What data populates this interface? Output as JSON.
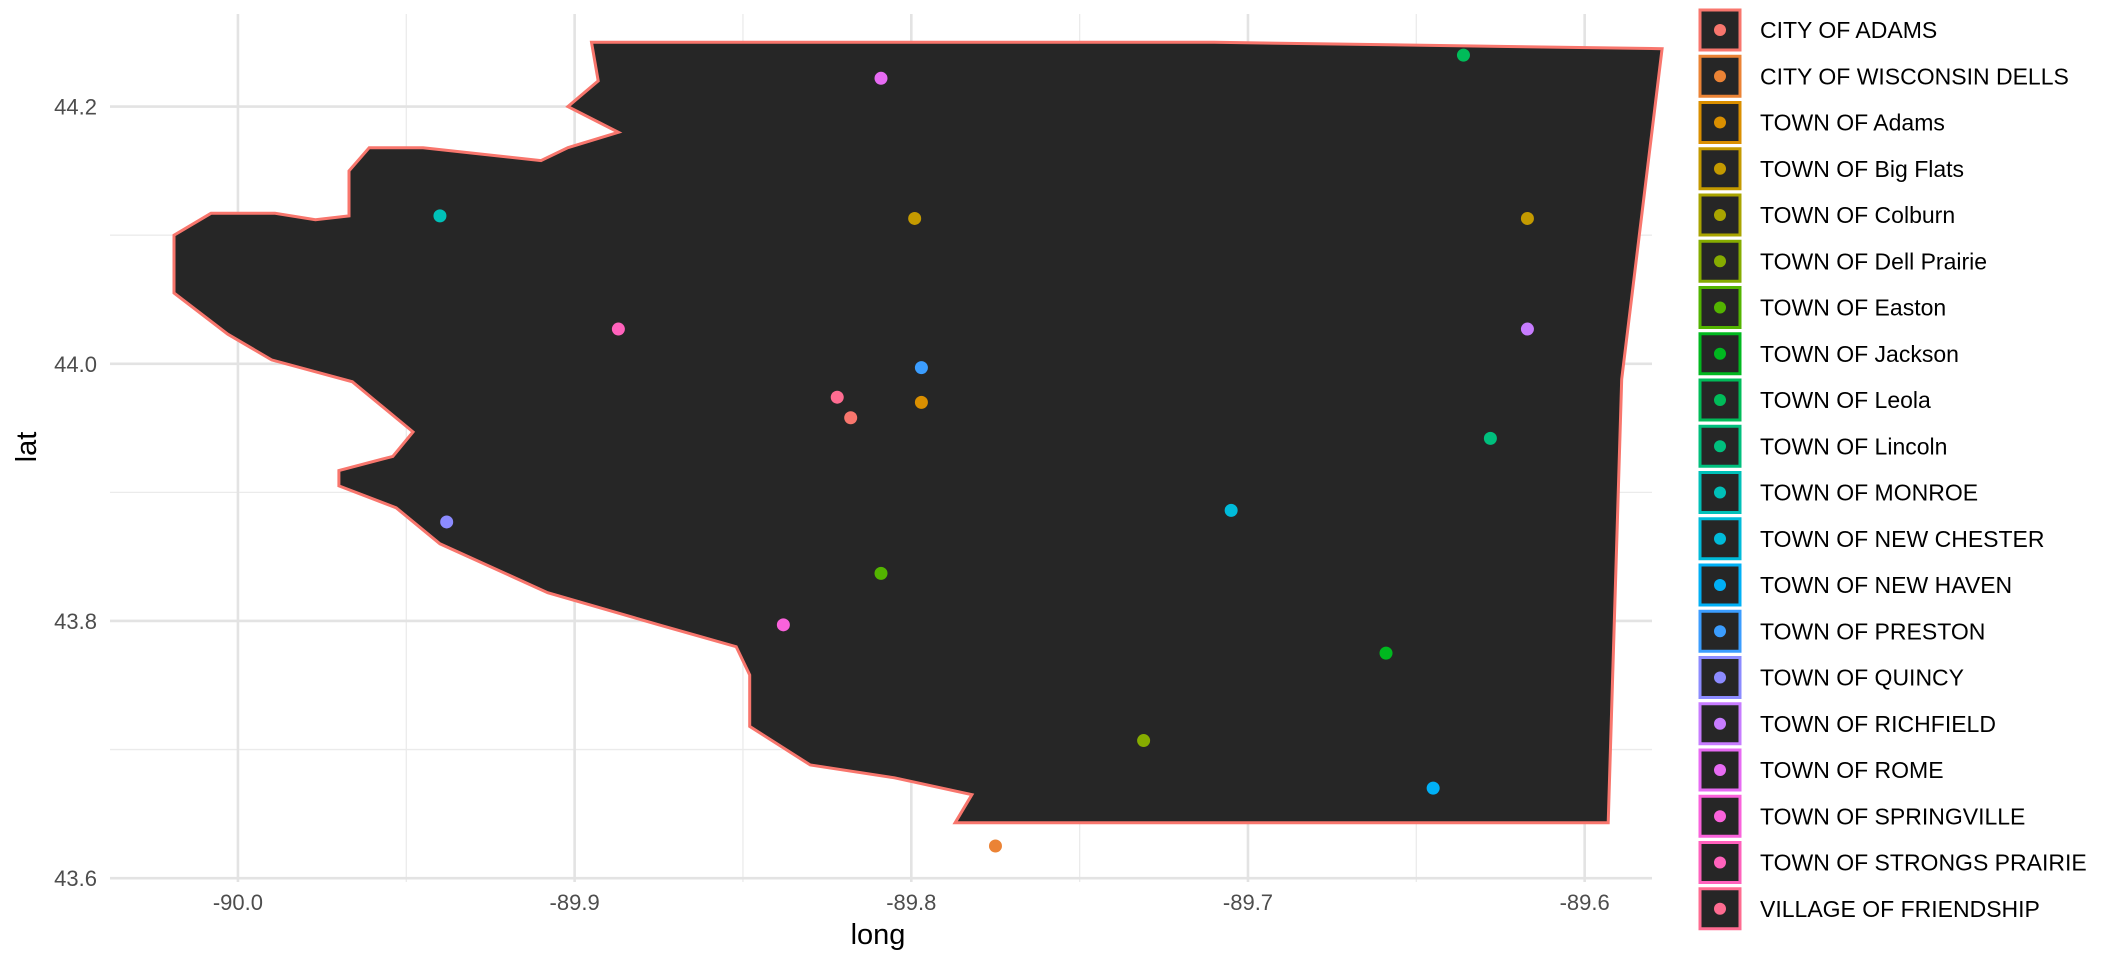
{
  "chart_data": {
    "type": "scatter",
    "xlabel": "long",
    "ylabel": "lat",
    "xlim": [
      -90.038,
      -89.58
    ],
    "ylim": [
      43.597,
      44.272
    ],
    "x_ticks": [
      -90.0,
      -89.9,
      -89.8,
      -89.7,
      -89.6
    ],
    "x_tick_labels": [
      "-90.0",
      "-89.9",
      "-89.8",
      "-89.7",
      "-89.6"
    ],
    "y_ticks": [
      43.6,
      43.8,
      44.0,
      44.2
    ],
    "y_tick_labels": [
      "43.6",
      "43.8",
      "44.0",
      "44.2"
    ],
    "grid": true,
    "legend_position": "right",
    "region": {
      "fill": "#262626",
      "stroke": "#f8766d",
      "outline": [
        [
          -89.895,
          44.25
        ],
        [
          -89.71,
          44.25
        ],
        [
          -89.577,
          44.245
        ],
        [
          -89.589,
          43.988
        ],
        [
          -89.593,
          43.643
        ],
        [
          -89.787,
          43.643
        ],
        [
          -89.782,
          43.665
        ],
        [
          -89.805,
          43.678
        ],
        [
          -89.83,
          43.688
        ],
        [
          -89.848,
          43.718
        ],
        [
          -89.848,
          43.758
        ],
        [
          -89.852,
          43.78
        ],
        [
          -89.875,
          43.797
        ],
        [
          -89.908,
          43.822
        ],
        [
          -89.94,
          43.86
        ],
        [
          -89.953,
          43.888
        ],
        [
          -89.97,
          43.905
        ],
        [
          -89.97,
          43.917
        ],
        [
          -89.954,
          43.928
        ],
        [
          -89.948,
          43.947
        ],
        [
          -89.966,
          43.986
        ],
        [
          -89.99,
          44.003
        ],
        [
          -90.003,
          44.023
        ],
        [
          -90.019,
          44.055
        ],
        [
          -90.019,
          44.1
        ],
        [
          -90.008,
          44.117
        ],
        [
          -89.989,
          44.117
        ],
        [
          -89.977,
          44.112
        ],
        [
          -89.967,
          44.115
        ],
        [
          -89.967,
          44.15
        ],
        [
          -89.961,
          44.168
        ],
        [
          -89.945,
          44.168
        ],
        [
          -89.91,
          44.158
        ],
        [
          -89.902,
          44.168
        ],
        [
          -89.887,
          44.18
        ],
        [
          -89.902,
          44.2
        ],
        [
          -89.893,
          44.22
        ]
      ]
    },
    "series": [
      {
        "name": "CITY OF ADAMS",
        "color": "#F8766D",
        "points": [
          [
            -89.818,
            43.958
          ]
        ]
      },
      {
        "name": "CITY OF WISCONSIN DELLS",
        "color": "#EB8335",
        "points": [
          [
            -89.775,
            43.625
          ]
        ]
      },
      {
        "name": "TOWN OF Adams",
        "color": "#DA8F00",
        "points": [
          [
            -89.797,
            43.97
          ]
        ]
      },
      {
        "name": "TOWN OF Big Flats",
        "color": "#C49A00",
        "points": [
          [
            -89.799,
            44.113
          ],
          [
            -89.617,
            44.113
          ]
        ]
      },
      {
        "name": "TOWN OF Colburn",
        "color": "#A9A400",
        "points": []
      },
      {
        "name": "TOWN OF Dell Prairie",
        "color": "#86AC00",
        "points": [
          [
            -89.731,
            43.707
          ]
        ]
      },
      {
        "name": "TOWN OF Easton",
        "color": "#53B400",
        "points": [
          [
            -89.809,
            43.837
          ]
        ]
      },
      {
        "name": "TOWN OF Jackson",
        "color": "#00B81F",
        "points": [
          [
            -89.659,
            43.775
          ]
        ]
      },
      {
        "name": "TOWN OF Leola",
        "color": "#00BC59",
        "points": [
          [
            -89.636,
            44.24
          ]
        ]
      },
      {
        "name": "TOWN OF Lincoln",
        "color": "#00BF7D",
        "points": [
          [
            -89.628,
            43.942
          ]
        ]
      },
      {
        "name": "TOWN OF MONROE",
        "color": "#00C0B8",
        "points": [
          [
            -89.94,
            44.115
          ]
        ]
      },
      {
        "name": "TOWN OF NEW CHESTER",
        "color": "#00BBDA",
        "points": [
          [
            -89.705,
            43.886
          ]
        ]
      },
      {
        "name": "TOWN OF NEW HAVEN",
        "color": "#00B0F6",
        "points": [
          [
            -89.645,
            43.67
          ]
        ]
      },
      {
        "name": "TOWN OF PRESTON",
        "color": "#3B9DFF",
        "points": [
          [
            -89.797,
            43.997
          ]
        ]
      },
      {
        "name": "TOWN OF QUINCY",
        "color": "#8C8BFF",
        "points": [
          [
            -89.938,
            43.877
          ]
        ]
      },
      {
        "name": "TOWN OF RICHFIELD",
        "color": "#C77CFF",
        "points": [
          [
            -89.617,
            44.027
          ]
        ]
      },
      {
        "name": "TOWN OF ROME",
        "color": "#E76BF3",
        "points": [
          [
            -89.809,
            44.222
          ]
        ]
      },
      {
        "name": "TOWN OF SPRINGVILLE",
        "color": "#FA62DB",
        "points": [
          [
            -89.838,
            43.797
          ]
        ]
      },
      {
        "name": "TOWN OF STRONGS PRAIRIE",
        "color": "#FF62BC",
        "points": [
          [
            -89.887,
            44.027
          ]
        ]
      },
      {
        "name": "VILLAGE OF FRIENDSHIP",
        "color": "#FF6C91",
        "points": [
          [
            -89.822,
            43.974
          ]
        ]
      }
    ]
  }
}
